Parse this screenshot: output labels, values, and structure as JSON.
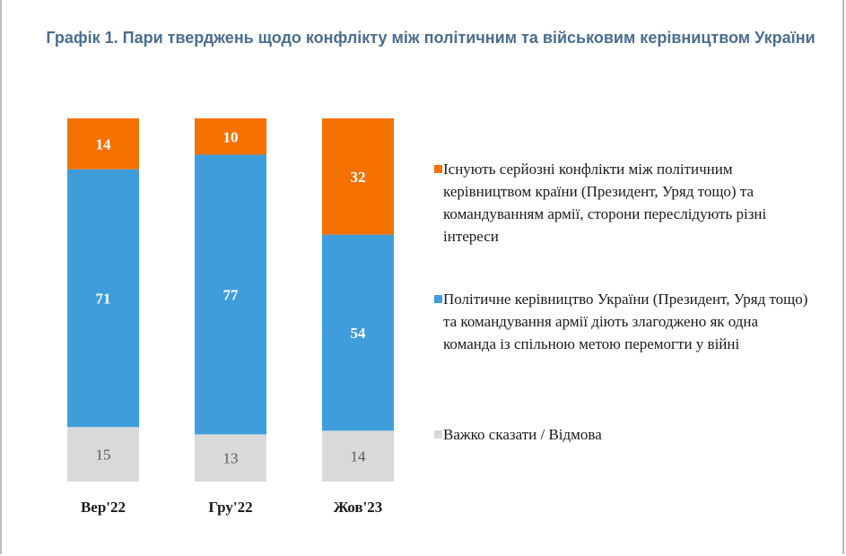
{
  "chart_data": {
    "type": "bar",
    "stacked": true,
    "title": "Графік 1. Пари тверджень щодо конфлікту між політичним та військовим керівництвом України",
    "categories": [
      "Вер'22",
      "Гру'22",
      "Жов'23"
    ],
    "ylim": [
      0,
      100
    ],
    "grid": false,
    "legend_position": "right",
    "series": [
      {
        "name": "Важко сказати / Відмова",
        "values": [
          15,
          13,
          14
        ],
        "color": "#d9d9d9",
        "label_color": "#595959",
        "label_bold": false
      },
      {
        "name": "Політичне керівництво України (Президент, Уряд тощо) та командування армії діють злагоджено як одна команда із спільною метою перемогти у війні",
        "values": [
          71,
          77,
          54
        ],
        "color": "#3f9ddb",
        "label_color": "#ffffff",
        "label_bold": true
      },
      {
        "name": "Існують серйозні конфлікти між політичним керівництвом країни (Президент, Уряд тощо) та командуванням армії, сторони переслідують різні інтереси",
        "values": [
          14,
          10,
          32
        ],
        "color": "#f57200",
        "label_color": "#ffffff",
        "label_bold": true
      }
    ]
  },
  "legend": [
    {
      "label": "Існують серйозні конфлікти між політичним керівництвом країни (Президент, Уряд тощо) та командуванням армії, сторони переслідують різні інтереси",
      "color": "#f57200"
    },
    {
      "label": "Політичне керівництво України (Президент, Уряд тощо) та командування армії діють злагоджено як одна команда із спільною метою перемогти у війні",
      "color": "#3f9ddb"
    },
    {
      "label": "Важко сказати / Відмова",
      "color": "#d9d9d9"
    }
  ]
}
